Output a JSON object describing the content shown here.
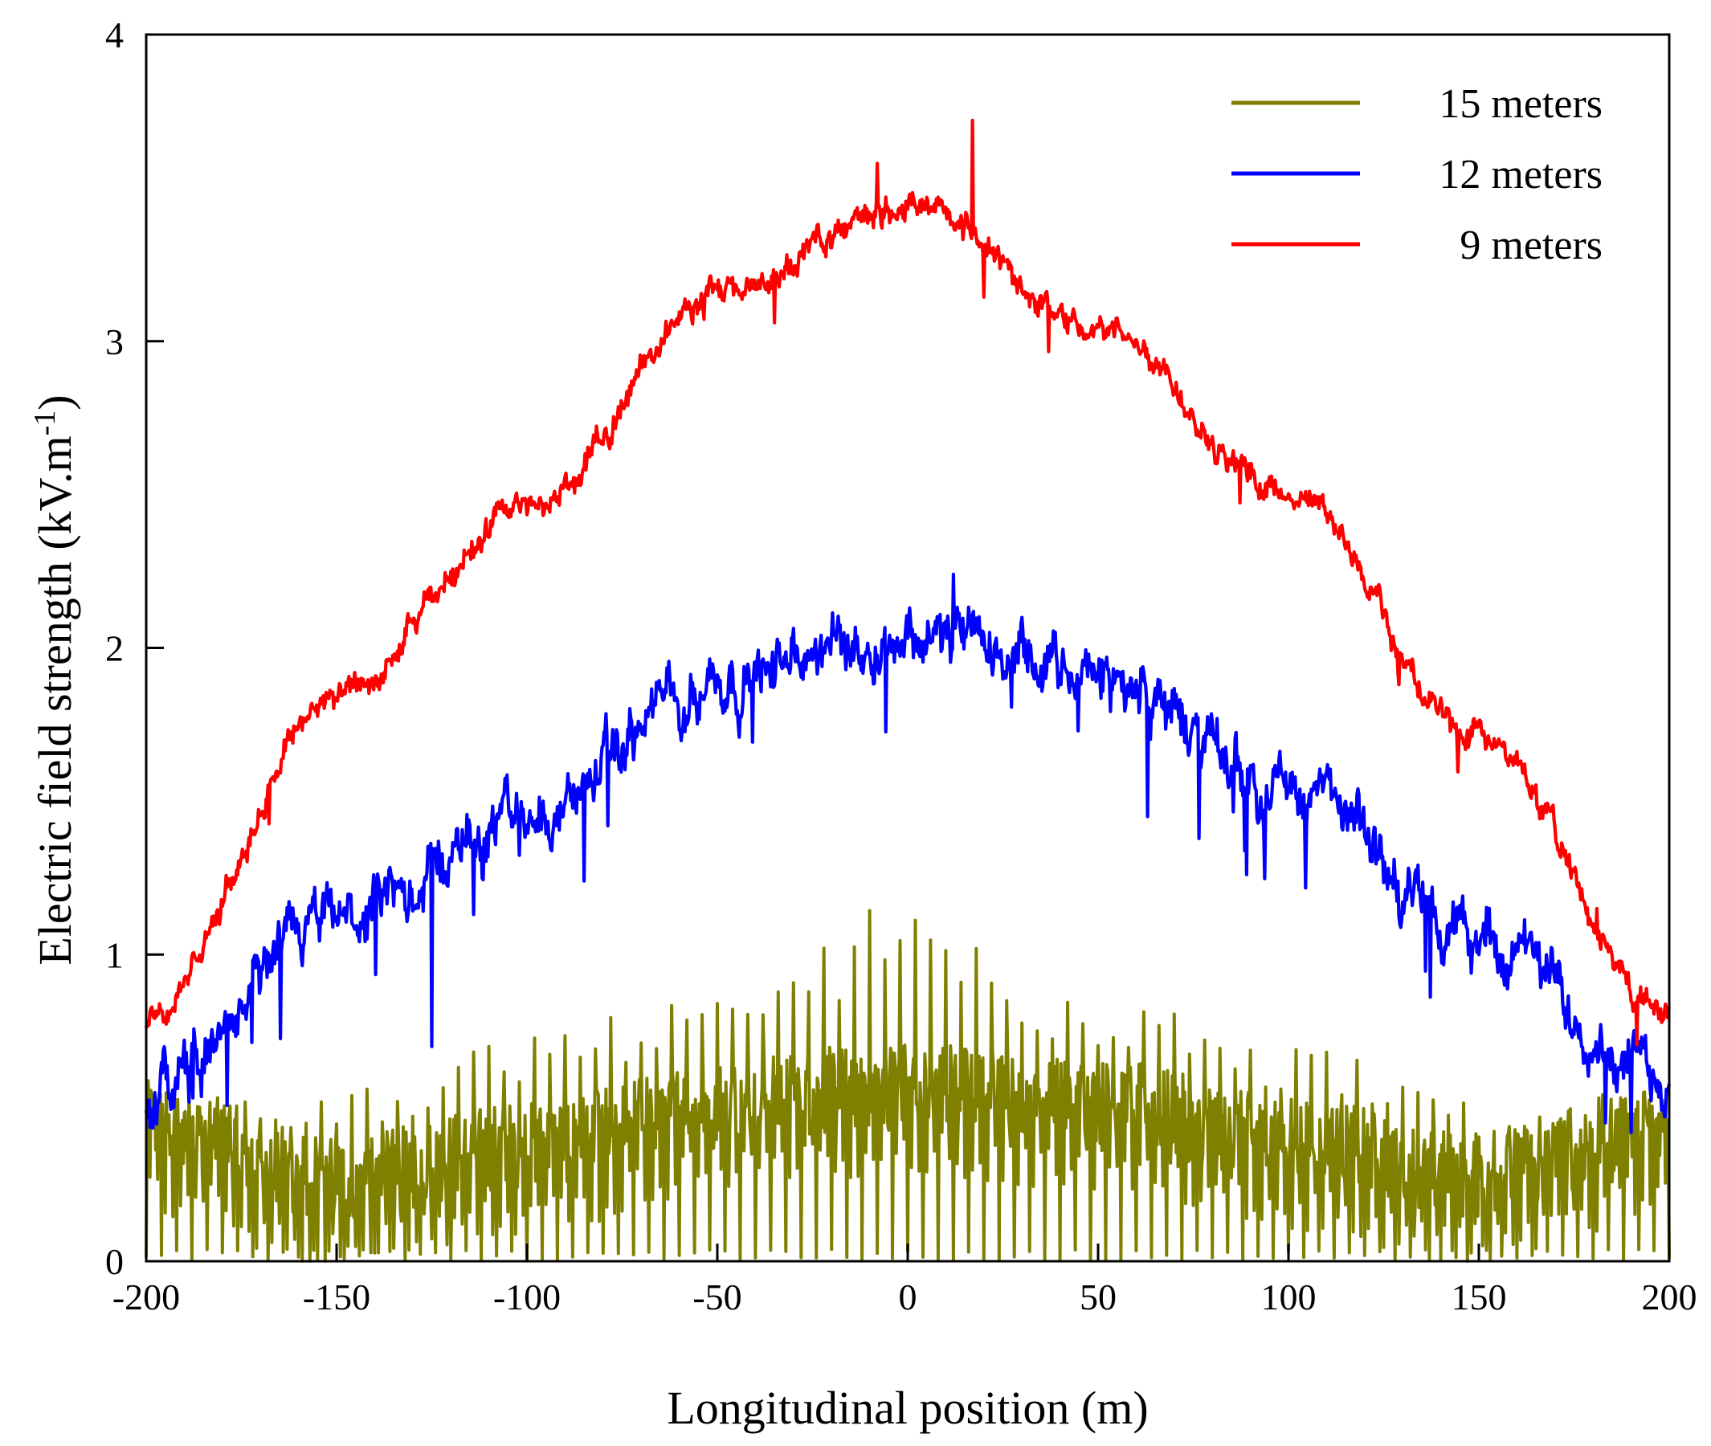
{
  "chart_data": {
    "type": "line",
    "title": "",
    "xlabel": "Longitudinal position (m)",
    "ylabel": "Electric field strength (kV.m",
    "ylabel_superscript": "-1",
    "ylabel_close": ")",
    "xlim": [
      -200,
      200
    ],
    "ylim": [
      0,
      4
    ],
    "x_ticks": [
      -200,
      -150,
      -100,
      -50,
      0,
      50,
      100,
      150,
      200
    ],
    "y_ticks": [
      0,
      1,
      2,
      3,
      4
    ],
    "grid": false,
    "legend_position": "top-right",
    "series": [
      {
        "name": "15 meters",
        "color": "#808000",
        "x": [
          -200,
          -150,
          -100,
          -50,
          0,
          50,
          100,
          150,
          200
        ],
        "values": [
          0.45,
          0.27,
          0.38,
          0.52,
          0.58,
          0.52,
          0.4,
          0.28,
          0.45
        ],
        "peak_values": [
          0.5,
          0.55,
          0.75,
          0.88,
          1.18,
          0.88,
          0.72,
          0.52,
          0.5
        ],
        "min_values": [
          0.0,
          0.0,
          0.0,
          0.0,
          0.0,
          0.0,
          0.0,
          0.0,
          0.0
        ]
      },
      {
        "name": "12 meters",
        "color": "#0000ff",
        "x": [
          -200,
          -150,
          -100,
          -50,
          0,
          50,
          100,
          150,
          200
        ],
        "values": [
          0.55,
          1.1,
          1.45,
          1.9,
          2.05,
          1.9,
          1.55,
          1.05,
          0.6
        ],
        "notable_points": [
          {
            "x": -125,
            "y": 0.7
          },
          {
            "x": -85,
            "y": 1.24
          },
          {
            "x": 12,
            "y": 2.24
          },
          {
            "x": 63,
            "y": 1.45
          },
          {
            "x": 190,
            "y": 0.42
          }
        ]
      },
      {
        "name": "9 meters",
        "color": "#ff0000",
        "x": [
          -200,
          -150,
          -100,
          -50,
          0,
          50,
          100,
          150,
          200
        ],
        "values": [
          0.8,
          1.85,
          2.45,
          3.15,
          3.45,
          3.05,
          2.5,
          1.7,
          0.8
        ],
        "notable_points": [
          {
            "x": -8,
            "y": 3.58
          },
          {
            "x": 17,
            "y": 3.72
          },
          {
            "x": -35,
            "y": 3.06
          },
          {
            "x": 129,
            "y": 1.88
          },
          {
            "x": 181,
            "y": 1.15
          }
        ]
      }
    ],
    "legend": [
      {
        "label": "15 meters",
        "color": "#808000"
      },
      {
        "label": "12 meters",
        "color": "#0000ff"
      },
      {
        "label": "9 meters",
        "color": "#ff0000"
      }
    ]
  }
}
